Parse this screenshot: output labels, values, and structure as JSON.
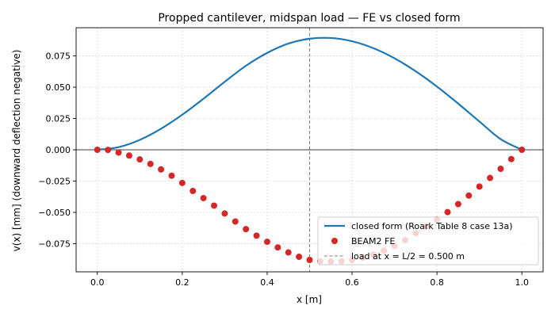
{
  "chart_data": {
    "type": "line",
    "title": "Propped cantilever, midspan load — FE vs closed form",
    "xlabel": "x [m]",
    "ylabel": "v(x)  [mm]   (downward deflection negative)",
    "xlim": [
      -0.05,
      1.05
    ],
    "ylim": [
      -0.0975,
      0.0975
    ],
    "xticks": [
      0.0,
      0.2,
      0.4,
      0.6,
      0.8,
      1.0
    ],
    "xtick_labels": [
      "0.0",
      "0.2",
      "0.4",
      "0.6",
      "0.8",
      "1.0"
    ],
    "yticks": [
      -0.075,
      -0.05,
      -0.025,
      0.0,
      0.025,
      0.05,
      0.075
    ],
    "ytick_labels": [
      "−0.075",
      "−0.050",
      "−0.025",
      "0.000",
      "0.025",
      "0.050",
      "0.075"
    ],
    "grid": true,
    "zero_line": 0.0,
    "legend_position": "lower-right",
    "series": [
      {
        "name": "closed form (Roark Table 8 case 13a)",
        "kind": "line",
        "color": "#1f77b4",
        "x": [
          0.0,
          0.05,
          0.1,
          0.15,
          0.2,
          0.25,
          0.3,
          0.35,
          0.4,
          0.45,
          0.5,
          0.55,
          0.6,
          0.65,
          0.7,
          0.75,
          0.8,
          0.85,
          0.9,
          0.95,
          1.0
        ],
        "y": [
          0.0,
          0.0021,
          0.0079,
          0.0168,
          0.028,
          0.0408,
          0.0543,
          0.0671,
          0.0774,
          0.0849,
          0.0887,
          0.0893,
          0.0867,
          0.0812,
          0.0731,
          0.0627,
          0.0505,
          0.0369,
          0.0226,
          0.0085,
          0.0
        ]
      },
      {
        "name": "BEAM2 FE",
        "kind": "scatter",
        "color": "#d62728",
        "x": [
          0.0,
          0.025,
          0.05,
          0.075,
          0.1,
          0.125,
          0.15,
          0.175,
          0.2,
          0.225,
          0.25,
          0.275,
          0.3,
          0.325,
          0.35,
          0.375,
          0.4,
          0.425,
          0.45,
          0.475,
          0.5,
          0.525,
          0.55,
          0.575,
          0.6,
          0.625,
          0.65,
          0.675,
          0.7,
          0.725,
          0.75,
          0.775,
          0.8,
          0.825,
          0.85,
          0.875,
          0.9,
          0.925,
          0.95,
          0.975,
          1.0
        ],
        "y": [
          0.0,
          -0.0001,
          -0.0022,
          -0.0046,
          -0.0077,
          -0.0113,
          -0.0157,
          -0.0207,
          -0.0265,
          -0.0329,
          -0.0386,
          -0.0446,
          -0.0509,
          -0.0573,
          -0.0634,
          -0.0686,
          -0.0735,
          -0.078,
          -0.082,
          -0.0855,
          -0.088,
          -0.089,
          -0.0893,
          -0.089,
          -0.088,
          -0.0862,
          -0.0838,
          -0.0806,
          -0.0768,
          -0.0721,
          -0.0667,
          -0.0614,
          -0.0558,
          -0.0498,
          -0.0434,
          -0.0366,
          -0.0294,
          -0.0225,
          -0.0152,
          -0.0074,
          0.0
        ]
      },
      {
        "name": "load at x = L/2 = 0.500 m",
        "kind": "vline",
        "color": "#808080",
        "x": 0.5
      }
    ]
  }
}
